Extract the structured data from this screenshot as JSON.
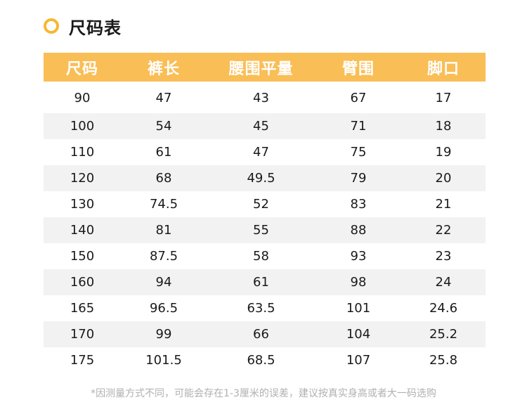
{
  "header": {
    "title": "尺码表",
    "accent_color": "#f9be56",
    "icon": "ring-icon"
  },
  "table": {
    "columns": [
      "尺码",
      "裤长",
      "腰围平量",
      "臂围",
      "脚口"
    ],
    "rows": [
      [
        "90",
        "47",
        "43",
        "67",
        "17"
      ],
      [
        "100",
        "54",
        "45",
        "71",
        "18"
      ],
      [
        "110",
        "61",
        "47",
        "75",
        "19"
      ],
      [
        "120",
        "68",
        "49.5",
        "79",
        "20"
      ],
      [
        "130",
        "74.5",
        "52",
        "83",
        "21"
      ],
      [
        "140",
        "81",
        "55",
        "88",
        "22"
      ],
      [
        "150",
        "87.5",
        "58",
        "93",
        "23"
      ],
      [
        "160",
        "94",
        "61",
        "98",
        "24"
      ],
      [
        "165",
        "96.5",
        "63.5",
        "101",
        "24.6"
      ],
      [
        "170",
        "99",
        "66",
        "104",
        "25.2"
      ],
      [
        "175",
        "101.5",
        "68.5",
        "107",
        "25.8"
      ]
    ],
    "stripe_color": "#f2f2f2"
  },
  "footnote": "*因测量方式不同，可能会存在1-3厘米的误差，建议按真实身高或者大一码选购"
}
